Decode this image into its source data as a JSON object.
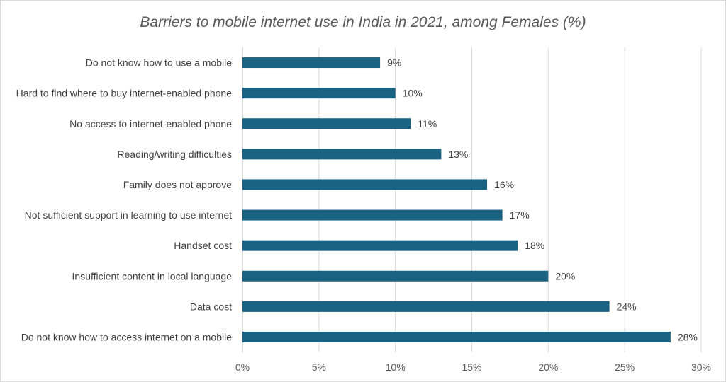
{
  "chart_data": {
    "type": "bar",
    "orientation": "horizontal",
    "title": "Barriers to mobile internet use in India in 2021, among Females (%)",
    "categories": [
      "Do not know how to use a mobile",
      "Hard to find where to buy internet-enabled phone",
      "No access to internet-enabled phone",
      "Reading/writing difficulties",
      "Family does not approve",
      "Not sufficient support in learning to use internet",
      "Handset cost",
      "Insufficient content in local language",
      "Data cost",
      "Do not know how to access internet on a mobile"
    ],
    "values": [
      9,
      10,
      11,
      13,
      16,
      17,
      18,
      20,
      24,
      28
    ],
    "data_labels": [
      "9%",
      "10%",
      "11%",
      "13%",
      "16%",
      "17%",
      "18%",
      "20%",
      "24%",
      "28%"
    ],
    "xlim": [
      0,
      30
    ],
    "xticks": [
      0,
      5,
      10,
      15,
      20,
      25,
      30
    ],
    "xtick_labels": [
      "0%",
      "5%",
      "10%",
      "15%",
      "20%",
      "25%",
      "30%"
    ],
    "xlabel": "",
    "ylabel": "",
    "grid": "vertical",
    "legend": "none",
    "bar_color": "#1a6282"
  }
}
